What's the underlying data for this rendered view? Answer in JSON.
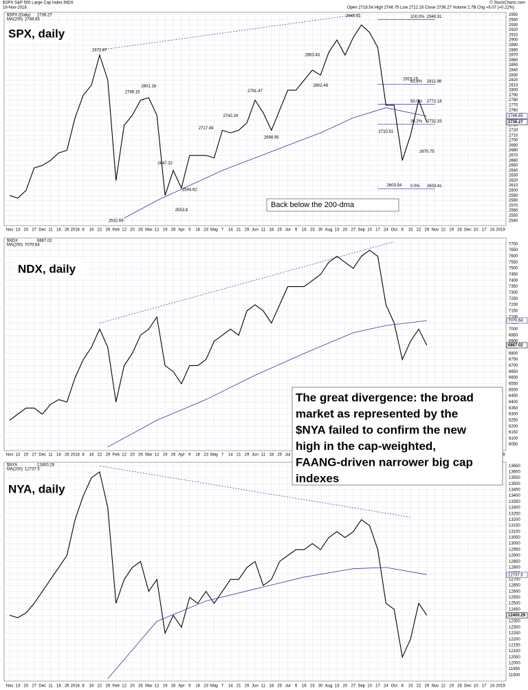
{
  "header": {
    "symbol": "$SPX S&P 500 Large Cap Index INDX",
    "date": "16-Nov-2018",
    "quote": "Open 2718.54 High 2746.75 Low 2712.16 Close 2736.27 Volume 2.7B Chg +6.07 (+0.22%)",
    "credit": "© StockCharts.com"
  },
  "time_axis": {
    "labels": [
      "Nov",
      "13",
      "20",
      "27",
      "Dec",
      "11",
      "18",
      "26",
      "2018",
      "8",
      "16",
      "22",
      "29",
      "Feb",
      "12",
      "20",
      "26",
      "Mar",
      "12",
      "19",
      "26",
      "Apr",
      "9",
      "16",
      "23",
      "May",
      "7",
      "14",
      "21",
      "29",
      "Jun",
      "11",
      "18",
      "25",
      "Jul",
      "9",
      "16",
      "23",
      "30",
      "Aug",
      "13",
      "20",
      "27",
      "Sep",
      "10",
      "17",
      "24",
      "Oct",
      "8",
      "15",
      "22",
      "29",
      "Nov",
      "12",
      "19",
      "26",
      "Dec",
      "10",
      "17",
      "24",
      "2019"
    ]
  },
  "notes": {
    "spx_box": "Back below the 200-dma",
    "divergence": [
      "The great divergence: the broad",
      "market as represented by the",
      "$NYA failed to confirm the new",
      "high in the cap-weighted,",
      "FAANG-driven narrower big cap",
      "indexes"
    ]
  },
  "chart_data": [
    {
      "type": "line",
      "title": "SPX, daily",
      "legend": "$SPX (Daily)",
      "last": 2736.27,
      "ma_legend": "MA(200)",
      "ma_last": 2748.65,
      "series": [
        {
          "name": "$SPX",
          "color": "#000000",
          "values": [
            2590,
            2585,
            2600,
            2645,
            2650,
            2660,
            2675,
            2680,
            2745,
            2790,
            2810,
            2870,
            2820,
            2620,
            2730,
            2750,
            2780,
            2785,
            2750,
            2590,
            2640,
            2605,
            2670,
            2670,
            2670,
            2665,
            2720,
            2715,
            2720,
            2735,
            2780,
            2755,
            2720,
            2760,
            2800,
            2800,
            2820,
            2840,
            2830,
            2875,
            2900,
            2870,
            2905,
            2930,
            2915,
            2885,
            2770,
            2770,
            2660,
            2710,
            2780,
            2736
          ]
        },
        {
          "name": "MA(200)",
          "color": "#3333aa",
          "x": [
            14,
            18,
            22,
            26,
            30,
            34,
            38,
            42,
            46,
            51
          ],
          "values": [
            2545,
            2580,
            2610,
            2640,
            2665,
            2690,
            2715,
            2745,
            2765,
            2748
          ]
        }
      ],
      "trendline": {
        "x": [
          11,
          43
        ],
        "values": [
          2880,
          2952
        ]
      },
      "annotations": [
        {
          "x": 11,
          "value": 2872.87
        },
        {
          "x": 13,
          "value": 2532.69
        },
        {
          "x": 15,
          "value": 2789.15
        },
        {
          "x": 17,
          "value": 2801.16
        },
        {
          "x": 19,
          "value": 2647.32
        },
        {
          "x": 21,
          "value": 2553.8
        },
        {
          "x": 22,
          "value": 2594.62
        },
        {
          "x": 24,
          "value": 2717.49
        },
        {
          "x": 27,
          "value": 2742.24
        },
        {
          "x": 30,
          "value": 2791.47
        },
        {
          "x": 32,
          "value": 2698.95
        },
        {
          "x": 37,
          "value": 2863.43
        },
        {
          "x": 38,
          "value": 2802.49
        },
        {
          "x": 42,
          "value": 2940.91
        },
        {
          "x": 46,
          "value": 2710.51
        },
        {
          "x": 47,
          "value": 2603.54
        },
        {
          "x": 49,
          "value": 2815.15
        },
        {
          "x": 51,
          "value": 2670.75
        }
      ],
      "fib": [
        {
          "label": "100.0%",
          "value": 2940.91
        },
        {
          "label": "61.8%",
          "value": 2811.98
        },
        {
          "label": "50.0%",
          "value": 2772.16
        },
        {
          "label": "38.2%",
          "value": 2732.33
        },
        {
          "label": "0.0%",
          "value": 2603.41
        }
      ],
      "ylim": [
        2530,
        2955
      ],
      "yticks": [
        2540,
        2550,
        2560,
        2570,
        2580,
        2590,
        2600,
        2610,
        2620,
        2630,
        2640,
        2650,
        2660,
        2670,
        2680,
        2690,
        2700,
        2710,
        2720,
        2730,
        2740,
        2750,
        2760,
        2770,
        2780,
        2790,
        2800,
        2810,
        2820,
        2830,
        2840,
        2850,
        2860,
        2870,
        2880,
        2890,
        2900,
        2910,
        2920,
        2930,
        2940,
        2950
      ],
      "grid": true
    },
    {
      "type": "line",
      "title": "NDX, daily",
      "legend": "$NDX",
      "last": 6867.02,
      "ma_legend": "MA(200)",
      "ma_last": 7070.64,
      "series": [
        {
          "name": "$NDX",
          "color": "#000000",
          "values": [
            6250,
            6300,
            6350,
            6350,
            6300,
            6380,
            6420,
            6400,
            6600,
            6750,
            6850,
            7000,
            6850,
            6400,
            6700,
            6800,
            6950,
            7000,
            7100,
            6700,
            6650,
            6550,
            6700,
            6700,
            6750,
            6900,
            6950,
            7000,
            6950,
            7150,
            7200,
            7150,
            7050,
            7200,
            7350,
            7350,
            7350,
            7400,
            7450,
            7550,
            7600,
            7550,
            7500,
            7600,
            7650,
            7600,
            7200,
            7050,
            6750,
            6900,
            7000,
            6867
          ]
        },
        {
          "name": "MA(200)",
          "color": "#3333aa",
          "x": [
            12,
            18,
            24,
            30,
            36,
            42,
            46,
            51
          ],
          "values": [
            6030,
            6250,
            6420,
            6620,
            6800,
            6970,
            7030,
            7070
          ]
        }
      ],
      "trendline": {
        "x": [
          11,
          47
        ],
        "values": [
          7050,
          7720
        ]
      },
      "ylim": [
        6000,
        7750
      ],
      "yticks": [
        6050,
        6100,
        6150,
        6200,
        6250,
        6300,
        6350,
        6400,
        6450,
        6500,
        6550,
        6600,
        6650,
        6700,
        6750,
        6800,
        6850,
        6900,
        6950,
        7000,
        7050,
        7100,
        7150,
        7200,
        7250,
        7300,
        7350,
        7400,
        7450,
        7500,
        7550,
        7600,
        7650,
        7700
      ],
      "grid": true
    },
    {
      "type": "line",
      "title": "NYA, daily",
      "legend": "$NYA",
      "last": 12400.29,
      "ma_legend": "MA(200)",
      "ma_last": 12737.5,
      "series": [
        {
          "name": "$NYA",
          "color": "#000000",
          "values": [
            12400,
            12380,
            12420,
            12500,
            12600,
            12700,
            12800,
            12900,
            13200,
            13400,
            13550,
            13600,
            13300,
            12500,
            12700,
            12800,
            12850,
            12600,
            12700,
            12250,
            12400,
            12300,
            12550,
            12500,
            12600,
            12500,
            12600,
            12700,
            12700,
            12800,
            12850,
            12650,
            12700,
            12850,
            12900,
            12950,
            12950,
            13000,
            12950,
            13050,
            13100,
            13050,
            13100,
            13200,
            13150,
            12950,
            12500,
            12450,
            12050,
            12200,
            12500,
            12400
          ]
        },
        {
          "name": "MA(200)",
          "color": "#3333aa",
          "x": [
            12,
            18,
            24,
            30,
            36,
            42,
            46,
            51
          ],
          "values": [
            11870,
            12350,
            12520,
            12620,
            12720,
            12790,
            12800,
            12740
          ]
        }
      ],
      "trendline": {
        "x": [
          11,
          49
        ],
        "values": [
          13650,
          13220
        ]
      },
      "ylim": [
        11850,
        13680
      ],
      "yticks": [
        11900,
        11950,
        12000,
        12050,
        12100,
        12150,
        12200,
        12250,
        12300,
        12350,
        12400,
        12450,
        12500,
        12550,
        12600,
        12650,
        12700,
        12750,
        12800,
        12850,
        12900,
        12950,
        13000,
        13050,
        13100,
        13150,
        13200,
        13250,
        13300,
        13350,
        13400,
        13450,
        13500,
        13550,
        13600,
        13650
      ],
      "grid": true
    }
  ]
}
